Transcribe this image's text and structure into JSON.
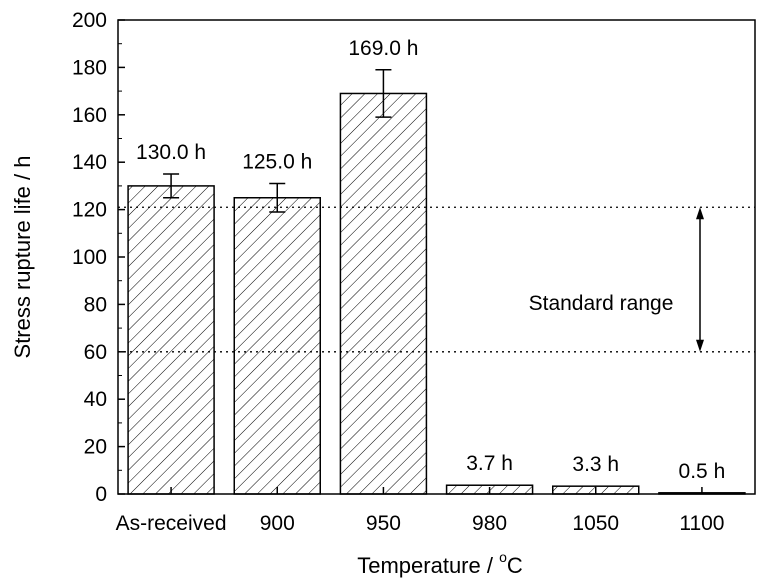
{
  "chart_data": {
    "type": "bar",
    "categories": [
      "As-received",
      "900",
      "950",
      "980",
      "1050",
      "1100"
    ],
    "values": [
      130.0,
      125.0,
      169.0,
      3.7,
      3.3,
      0.5
    ],
    "errors": [
      5,
      6,
      10,
      0,
      0,
      0
    ],
    "data_labels": [
      "130.0 h",
      "125.0 h",
      "169.0 h",
      "3.7 h",
      "3.3 h",
      "0.5 h"
    ],
    "xlabel": "Temperature / °C",
    "xlabel_main": "Temperature / ",
    "xlabel_degree": "o",
    "xlabel_unit": "C",
    "ylabel": "Stress rupture life / h",
    "ylim": [
      0,
      200
    ],
    "yticks": [
      0,
      20,
      40,
      60,
      80,
      100,
      120,
      140,
      160,
      180,
      200
    ],
    "bar_pattern": "diagonal-hatch",
    "bar_fill": "#ffffff",
    "bar_stroke": "#000000",
    "annotation": {
      "text": "Standard range",
      "range": [
        60,
        121
      ]
    },
    "grid": false
  }
}
